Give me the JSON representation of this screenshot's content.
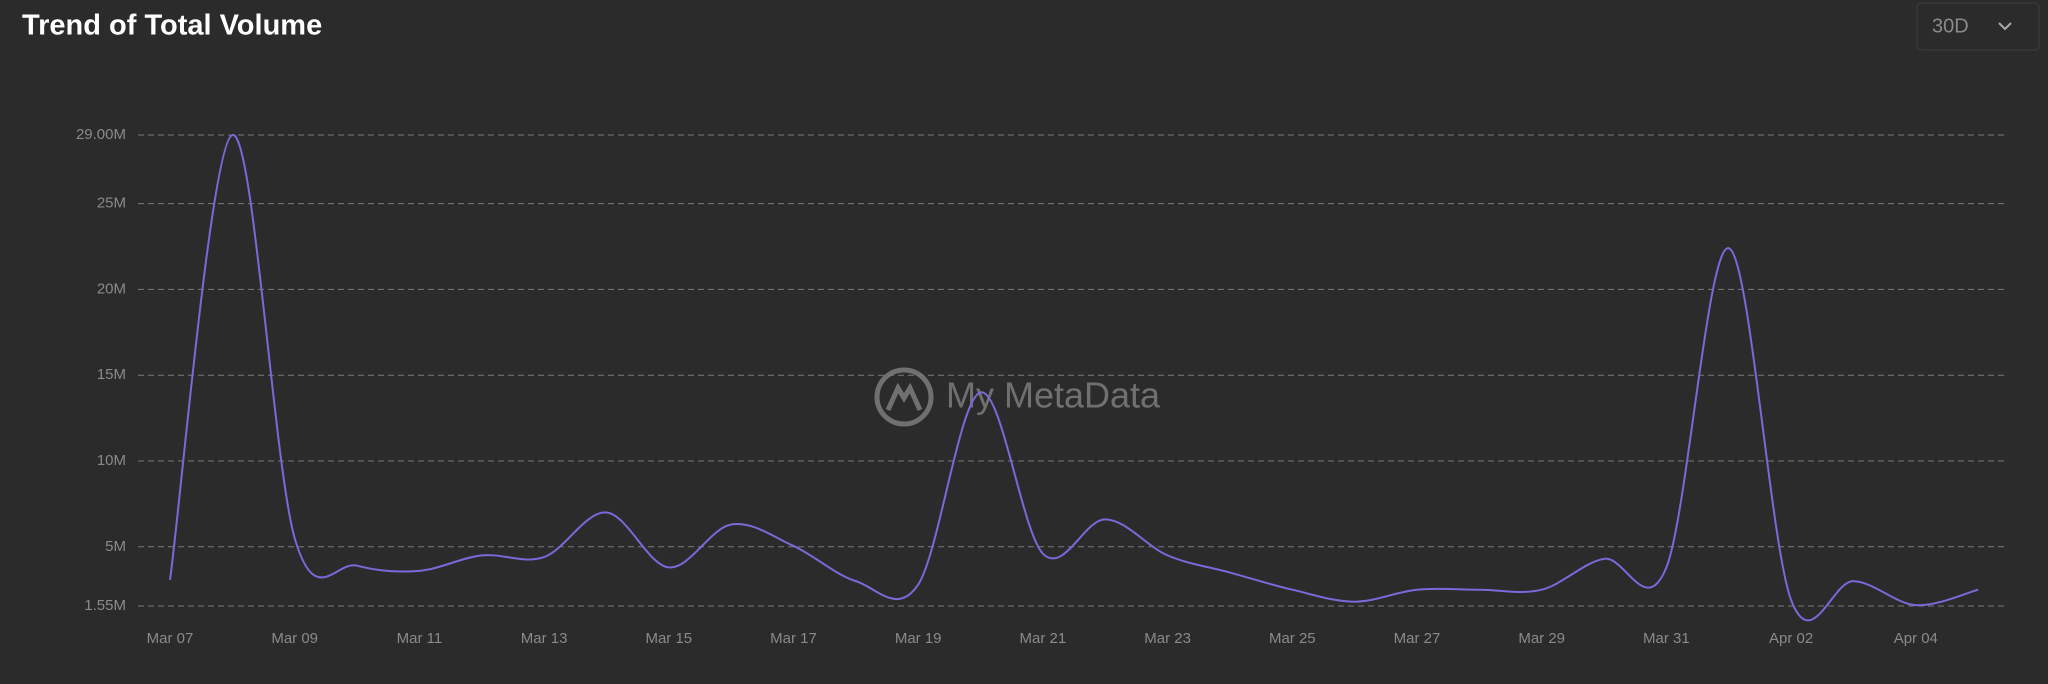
{
  "chart_data": {
    "type": "line",
    "title": "Trend of Total Volume",
    "range_selector": "30D",
    "watermark": "My MetaData",
    "categories": [
      "Mar 07",
      null,
      "Mar 09",
      null,
      "Mar 11",
      null,
      "Mar 13",
      null,
      "Mar 15",
      null,
      "Mar 17",
      null,
      "Mar 19",
      null,
      "Mar 21",
      null,
      "Mar 23",
      null,
      "Mar 25",
      null,
      "Mar 27",
      null,
      "Mar 29",
      null,
      "Mar 31",
      null,
      "Apr 02",
      null,
      "Apr 04",
      null
    ],
    "series": [
      {
        "name": "Total Volume",
        "color": "#7b68d9",
        "values": [
          3070000,
          29000000,
          5500000,
          3900000,
          3600000,
          4500000,
          4400000,
          7000000,
          3800000,
          6300000,
          5050000,
          3000000,
          2800000,
          14000000,
          4600000,
          6600000,
          4500000,
          3500000,
          2500000,
          1800000,
          2500000,
          2500000,
          2500000,
          4300000,
          3800000,
          22400000,
          1900000,
          3000000,
          1600000,
          2500000
        ]
      }
    ],
    "ylim": [
      1550000,
      29000000
    ],
    "yticks": [
      {
        "value": 1550000,
        "label": "1.55M"
      },
      {
        "value": 5000000,
        "label": "5M"
      },
      {
        "value": 10000000,
        "label": "10M"
      },
      {
        "value": 15000000,
        "label": "15M"
      },
      {
        "value": 20000000,
        "label": "20M"
      },
      {
        "value": 25000000,
        "label": "25M"
      },
      {
        "value": 29000000,
        "label": "29.00M"
      }
    ],
    "grid": true
  }
}
